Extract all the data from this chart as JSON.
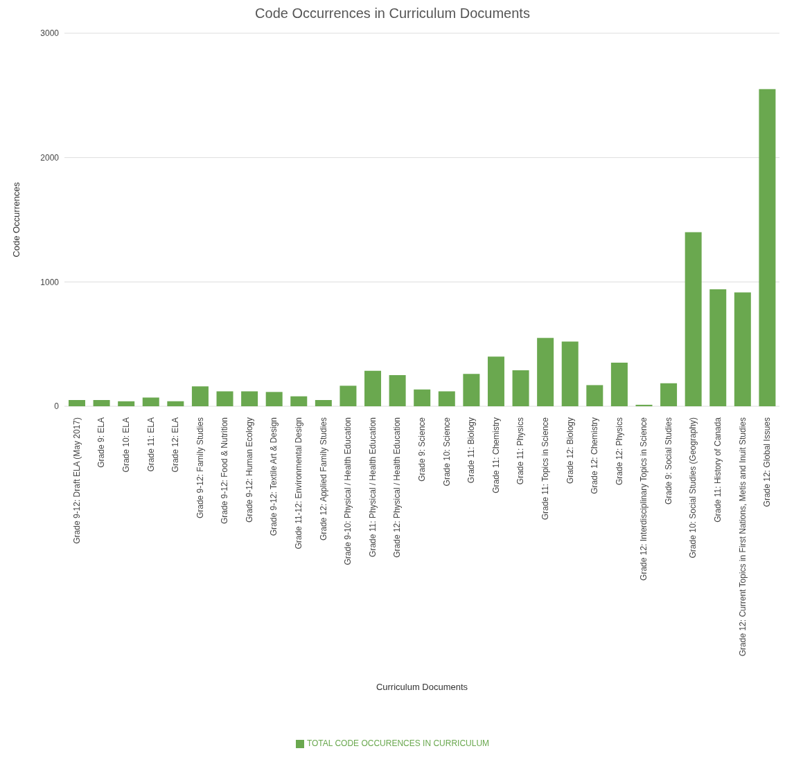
{
  "chart_data": {
    "type": "bar",
    "title": "Code Occurrences in Curriculum Documents",
    "xlabel": "Curriculum Documents",
    "ylabel": "Code Occurrences",
    "categories": [
      "Grade 9-12: Draft ELA (May 2017)",
      "Grade 9: ELA",
      "Grade 10: ELA",
      "Grade 11: ELA",
      "Grade 12: ELA",
      "Grade 9-12: Family Studies",
      "Grade 9-12: Food & Nutrition",
      "Grade 9-12: Human Ecology",
      "Grade 9-12: Textile Art & Design",
      "Grade 11-12: Environmental Design",
      "Grade 12: Applied Family Studies",
      "Grade 9-10: Physical / Health Education",
      "Grade 11: Physical / Health Education",
      "Grade 12: Physical / Health Education",
      "Grade 9: Science",
      "Grade 10: Science",
      "Grade 11: Biology",
      "Grade 11: Chemistry",
      "Grade 11: Physics",
      "Grade 11: Topics in Science",
      "Grade 12: Biology",
      "Grade 12: Chemistry",
      "Grade 12: Physics",
      "Grade 12: Interdisciplinary Topics in Science",
      "Grade 9: Social Studies",
      "Grade 10: Social Studies (Geography)",
      "Grade 11: History of Canada",
      "Grade 12: Current Topics in First Nations, Metis and Inuit Studies",
      "Grade 12: Global Issues"
    ],
    "series": [
      {
        "name": "TOTAL CODE OCCURENCES IN CURRICULUM",
        "color": "#6aa84f",
        "values": [
          50,
          50,
          40,
          70,
          40,
          160,
          120,
          120,
          115,
          80,
          50,
          165,
          285,
          250,
          135,
          120,
          260,
          400,
          290,
          550,
          520,
          170,
          350,
          12,
          185,
          1400,
          940,
          915,
          2550
        ]
      }
    ],
    "ylim": [
      0,
      3000
    ],
    "yticks": [
      0,
      1000,
      2000,
      3000
    ],
    "grid": "y",
    "legend": "bottom"
  }
}
